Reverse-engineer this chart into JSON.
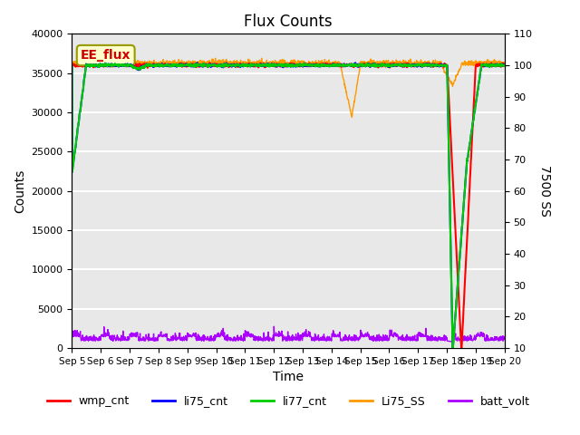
{
  "title": "Flux Counts",
  "xlabel": "Time",
  "ylabel_left": "Counts",
  "ylabel_right": "7500 SS",
  "xlim_days": [
    0,
    15
  ],
  "ylim_left": [
    0,
    40000
  ],
  "ylim_right": [
    10,
    110
  ],
  "left_yticks": [
    0,
    5000,
    10000,
    15000,
    20000,
    25000,
    30000,
    35000,
    40000
  ],
  "right_yticks": [
    10,
    20,
    30,
    40,
    50,
    60,
    70,
    80,
    90,
    100,
    110
  ],
  "xtick_labels": [
    "Sep 5",
    "Sep 6",
    "Sep 7",
    "Sep 8",
    "Sep 9",
    "Sep 10",
    "Sep 11",
    "Sep 12",
    "Sep 13",
    "Sep 14",
    "Sep 15",
    "Sep 16",
    "Sep 17",
    "Sep 18",
    "Sep 19",
    "Sep 20"
  ],
  "annotation_text": "EE_flux",
  "annotation_box_color": "#ffffcc",
  "annotation_text_color": "#cc0000",
  "bg_color": "#e8e8e8",
  "grid_color": "#ffffff",
  "lines": {
    "wmp_cnt": {
      "color": "#ff0000",
      "lw": 1.5,
      "zorder": 3
    },
    "li75_cnt": {
      "color": "#0000ff",
      "lw": 1.5,
      "zorder": 4
    },
    "li77_cnt": {
      "color": "#00cc00",
      "lw": 1.5,
      "zorder": 5
    },
    "Li75_SS": {
      "color": "#ff9900",
      "lw": 1.0,
      "zorder": 2
    },
    "batt_volt": {
      "color": "#aa00ff",
      "lw": 1.0,
      "zorder": 1
    }
  },
  "legend_entries": [
    "wmp_cnt",
    "li75_cnt",
    "li77_cnt",
    "Li75_SS",
    "batt_volt"
  ],
  "legend_colors": [
    "#ff0000",
    "#0000ff",
    "#00cc00",
    "#ff9900",
    "#aa00ff"
  ]
}
